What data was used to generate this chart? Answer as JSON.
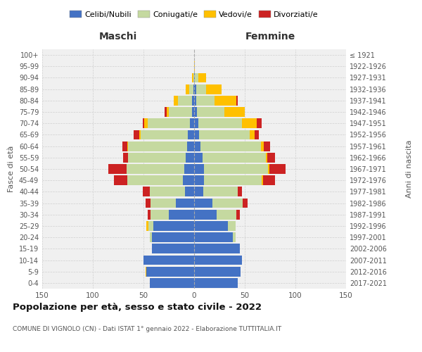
{
  "age_groups": [
    "0-4",
    "5-9",
    "10-14",
    "15-19",
    "20-24",
    "25-29",
    "30-34",
    "35-39",
    "40-44",
    "45-49",
    "50-54",
    "55-59",
    "60-64",
    "65-69",
    "70-74",
    "75-79",
    "80-84",
    "85-89",
    "90-94",
    "95-99",
    "100+"
  ],
  "birth_years": [
    "2017-2021",
    "2012-2016",
    "2007-2011",
    "2002-2006",
    "1997-2001",
    "1992-1996",
    "1987-1991",
    "1982-1986",
    "1977-1981",
    "1972-1976",
    "1967-1971",
    "1962-1966",
    "1957-1961",
    "1952-1956",
    "1947-1951",
    "1942-1946",
    "1937-1941",
    "1932-1936",
    "1927-1931",
    "1922-1926",
    "≤ 1921"
  ],
  "maschi": {
    "celibe": [
      44,
      47,
      50,
      42,
      42,
      40,
      25,
      18,
      9,
      11,
      10,
      8,
      7,
      6,
      4,
      2,
      2,
      1,
      0,
      0,
      0
    ],
    "coniugato": [
      0,
      0,
      0,
      0,
      2,
      5,
      18,
      25,
      35,
      55,
      57,
      57,
      58,
      47,
      42,
      23,
      14,
      4,
      1,
      0,
      0
    ],
    "vedovo": [
      0,
      1,
      0,
      0,
      0,
      2,
      0,
      0,
      0,
      0,
      0,
      0,
      1,
      1,
      3,
      2,
      4,
      3,
      1,
      0,
      0
    ],
    "divorziato": [
      0,
      0,
      0,
      0,
      0,
      0,
      3,
      5,
      7,
      13,
      18,
      5,
      5,
      6,
      2,
      2,
      0,
      0,
      0,
      0,
      0
    ]
  },
  "femmine": {
    "nubile": [
      43,
      46,
      47,
      45,
      38,
      33,
      22,
      18,
      9,
      10,
      10,
      8,
      6,
      5,
      4,
      3,
      2,
      2,
      1,
      0,
      0
    ],
    "coniugata": [
      0,
      0,
      0,
      0,
      3,
      8,
      20,
      30,
      34,
      57,
      63,
      63,
      60,
      50,
      43,
      27,
      18,
      10,
      3,
      0,
      0
    ],
    "vedova": [
      0,
      0,
      0,
      0,
      0,
      0,
      0,
      0,
      0,
      1,
      1,
      1,
      3,
      5,
      15,
      20,
      22,
      15,
      8,
      1,
      0
    ],
    "divorziata": [
      0,
      0,
      0,
      0,
      0,
      0,
      3,
      5,
      4,
      12,
      16,
      8,
      6,
      4,
      5,
      0,
      1,
      0,
      0,
      0,
      0
    ]
  },
  "colors": {
    "celibe": "#4472c4",
    "coniugato": "#c5d9a0",
    "vedovo": "#ffc000",
    "divorziato": "#cc2222"
  },
  "xlim": 150,
  "title": "Popolazione per età, sesso e stato civile - 2022",
  "subtitle": "COMUNE DI VIGNOLO (CN) - Dati ISTAT 1° gennaio 2022 - Elaborazione TUTTITALIA.IT",
  "ylabel_left": "Fasce di età",
  "ylabel_right": "Anni di nascita",
  "xlabel_left": "Maschi",
  "xlabel_right": "Femmine",
  "legend_labels": [
    "Celibi/Nubili",
    "Coniugati/e",
    "Vedovi/e",
    "Divorziati/e"
  ],
  "bg_color": "#f0f0f0"
}
